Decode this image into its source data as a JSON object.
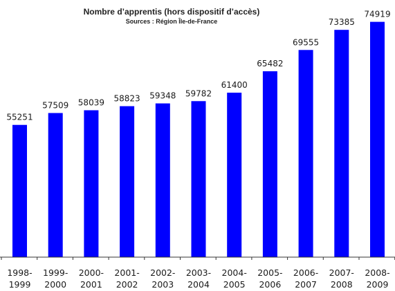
{
  "chart_data": {
    "type": "bar",
    "title": "Nombre d’apprentis (hors dispositif d’accès)",
    "subtitle": "Sources : Région Île-de-France",
    "categories": [
      [
        "1998-",
        "1999"
      ],
      [
        "1999-",
        "2000"
      ],
      [
        "2000-",
        "2001"
      ],
      [
        "2001-",
        "2002"
      ],
      [
        "2002-",
        "2003"
      ],
      [
        "2003-",
        "2004"
      ],
      [
        "2004-",
        "2005"
      ],
      [
        "2005-",
        "2006"
      ],
      [
        "2006-",
        "2007"
      ],
      [
        "2007-",
        "2008"
      ],
      [
        "2008-",
        "2009"
      ]
    ],
    "values": [
      55251,
      57509,
      58039,
      58823,
      59348,
      59782,
      61400,
      65482,
      69555,
      73385,
      74919
    ],
    "value_labels": [
      "55251",
      "57509",
      "58039",
      "58823",
      "59348",
      "59782",
      "61400",
      "65482",
      "69555",
      "73385",
      "74919"
    ],
    "xlabel": "",
    "ylabel": "",
    "ylim": [
      30000,
      75000
    ],
    "grid": false,
    "legend": "none",
    "bar_color": "#0000ff",
    "axis_color": "#333333"
  }
}
